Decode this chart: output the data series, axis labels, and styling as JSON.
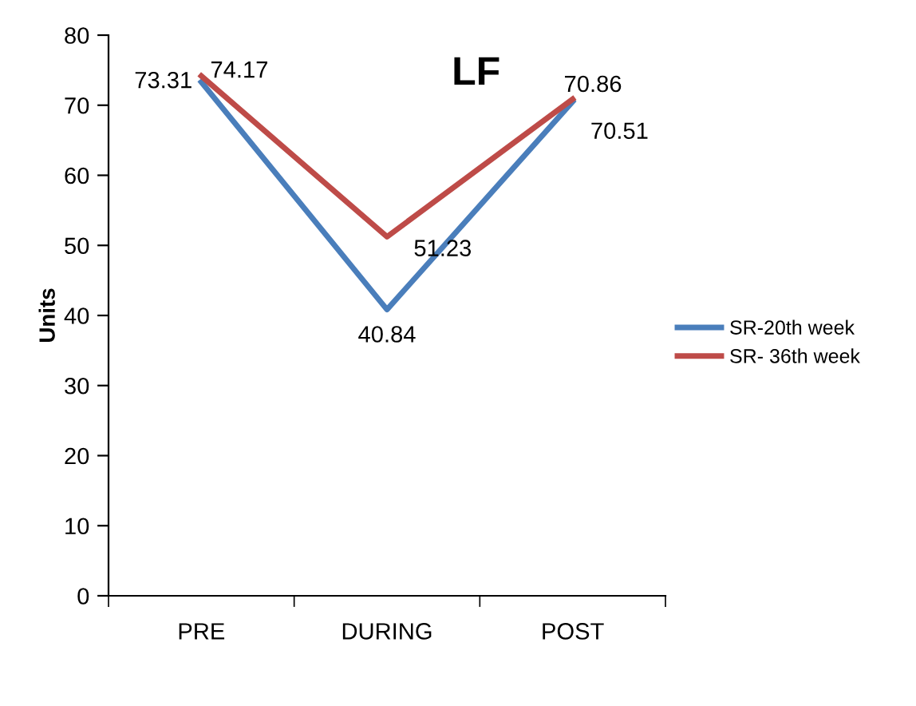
{
  "chart_data": {
    "type": "line",
    "title": "LF",
    "ylabel": "Units",
    "categories": [
      "PRE",
      "DURING",
      "POST"
    ],
    "series": [
      {
        "name": "SR-20th week",
        "color": "#4a7ebb",
        "values": [
          73.31,
          40.84,
          70.51
        ]
      },
      {
        "name": "SR- 36th week",
        "color": "#be4b48",
        "values": [
          74.17,
          51.23,
          70.86
        ]
      }
    ],
    "ylim": [
      0,
      80
    ],
    "yticks": [
      0,
      10,
      20,
      30,
      40,
      50,
      60,
      70,
      80
    ],
    "data_labels": true,
    "legend": "right",
    "grid": false,
    "marker": "none",
    "line_style": "solid"
  }
}
